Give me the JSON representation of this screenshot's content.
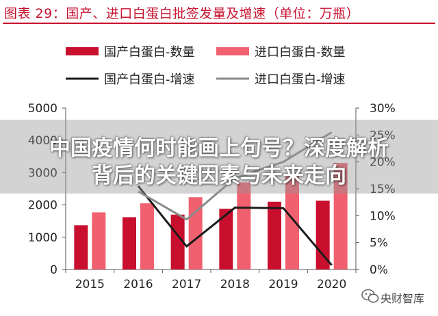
{
  "header": {
    "title": "图表 29：国产、进口白蛋白批签发量及增速（单位：万瓶）"
  },
  "overlay": {
    "line1": "中国疫情何时能画上句号？深度解析",
    "line2": "背后的关键因素与未来走向"
  },
  "watermark": {
    "text": "央财智库"
  },
  "colors": {
    "domestic_bar": "#c8102e",
    "import_bar": "#f0606e",
    "domestic_line": "#1a1a1a",
    "import_line": "#8a8a8a",
    "title": "#c8102e"
  },
  "chart_data": {
    "type": "bar+line",
    "title": "图表 29：国产、进口白蛋白批签发量及增速（单位：万瓶）",
    "categories": [
      "2015",
      "2016",
      "2017",
      "2018",
      "2019",
      "2020"
    ],
    "bar_series": [
      {
        "name": "国产白蛋白-数量",
        "values": [
          1370,
          1620,
          1700,
          1880,
          2100,
          2130
        ]
      },
      {
        "name": "进口白蛋白-数量",
        "values": [
          1770,
          2050,
          2240,
          2700,
          2900,
          3300
        ]
      }
    ],
    "line_series": [
      {
        "name": "国产白蛋白-增速",
        "values": [
          null,
          15.5,
          4.3,
          11.5,
          11.4,
          0.8
        ]
      },
      {
        "name": "进口白蛋白-增速",
        "values": [
          null,
          14.5,
          9.3,
          17.0,
          20.0,
          25.5
        ]
      }
    ],
    "ylim_left": [
      0,
      5000
    ],
    "yticks_left": [
      "0",
      "1000",
      "2000",
      "3000",
      "4000",
      "5000"
    ],
    "ylim_right": [
      0,
      30
    ],
    "yticks_right": [
      "0%",
      "5%",
      "10%",
      "15%",
      "20%",
      "25%",
      "30%"
    ],
    "legend_position": "top",
    "grid": false
  }
}
